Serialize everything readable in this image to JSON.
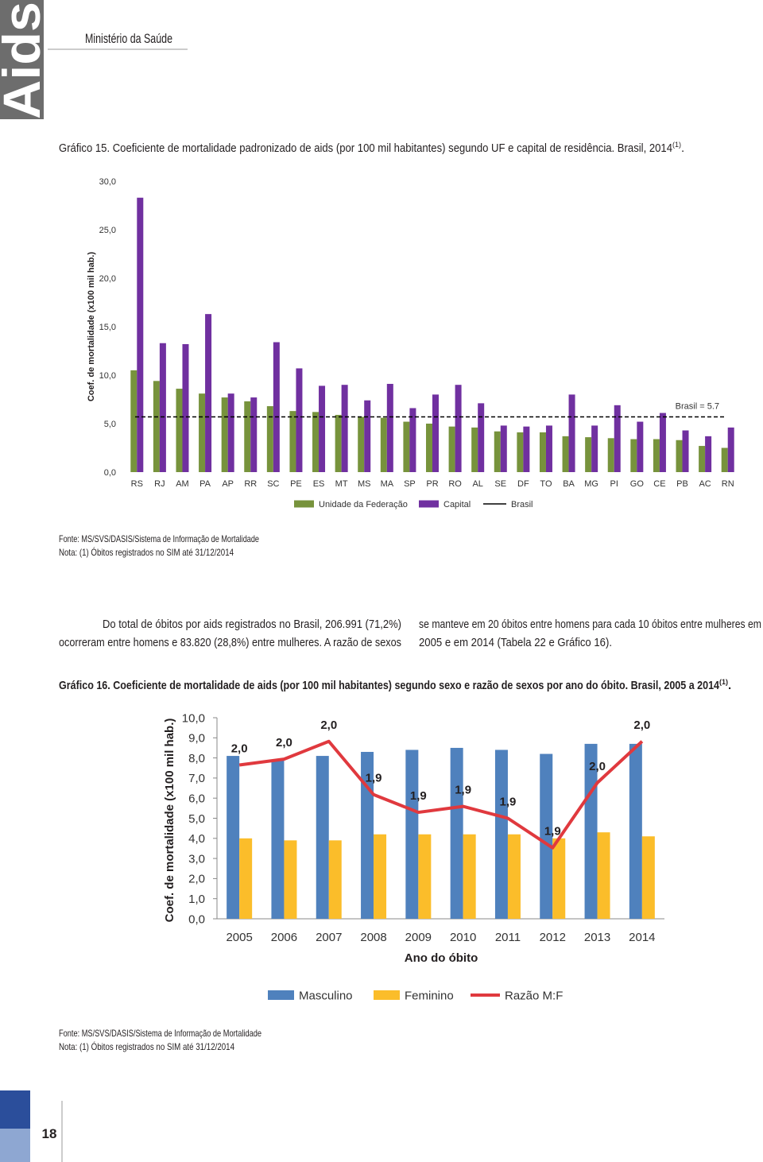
{
  "header": {
    "brand": "Aids",
    "ministry": "Ministério da Saúde"
  },
  "chart_data": [
    {
      "type": "bar",
      "title": "Gráfico 15. Coeficiente de mortalidade padronizado de aids (por 100 mil habitantes) segundo UF e capital de residência. Brasil, 2014",
      "title_sup": "(1)",
      "title_end": ".",
      "ylabel": "Coef. de mortalidade (x100 mil hab.)",
      "categories": [
        "RS",
        "RJ",
        "AM",
        "PA",
        "AP",
        "RR",
        "SC",
        "PE",
        "ES",
        "MT",
        "MS",
        "MA",
        "SP",
        "PR",
        "RO",
        "AL",
        "SE",
        "DF",
        "TO",
        "BA",
        "MG",
        "PI",
        "GO",
        "CE",
        "PB",
        "AC",
        "RN"
      ],
      "series": [
        {
          "name": "Unidade da Federação",
          "color": "#77933c",
          "values": [
            10.5,
            9.4,
            8.6,
            8.1,
            7.7,
            7.3,
            6.8,
            6.3,
            6.2,
            5.9,
            5.7,
            5.6,
            5.2,
            5.0,
            4.7,
            4.6,
            4.2,
            4.1,
            4.1,
            3.7,
            3.6,
            3.5,
            3.4,
            3.4,
            3.3,
            2.7,
            2.5
          ]
        },
        {
          "name": "Capital",
          "color": "#7030a0",
          "values": [
            28.3,
            13.3,
            13.2,
            16.3,
            8.1,
            7.7,
            13.4,
            10.7,
            8.9,
            9.0,
            7.4,
            9.1,
            6.6,
            8.0,
            9.0,
            7.1,
            4.8,
            4.7,
            4.8,
            8.0,
            4.8,
            6.9,
            5.2,
            6.1,
            4.3,
            3.7,
            4.6
          ]
        }
      ],
      "reference": {
        "name": "Brasil",
        "label": "Brasil = 5.7",
        "value": 5.7,
        "color": "#000000"
      },
      "ylim": [
        0,
        30
      ],
      "yticks": [
        {
          "value": 0,
          "label": "0,0"
        },
        {
          "value": 5,
          "label": "5,0"
        },
        {
          "value": 10,
          "label": "10,0"
        },
        {
          "value": 15,
          "label": "15,0"
        },
        {
          "value": 20,
          "label": "20,0"
        },
        {
          "value": 25,
          "label": "25,0"
        },
        {
          "value": 30,
          "label": "30,0"
        }
      ],
      "source": "Fonte: MS/SVS/DASIS/Sistema de Informação de Mortalidade",
      "note": "Nota: (1) Óbitos registrados no SIM até 31/12/2014"
    },
    {
      "type": "bar",
      "title": "Gráfico 16. Coeficiente de mortalidade de aids (por 100 mil habitantes) segundo sexo e razão de sexos por ano do óbito. Brasil, 2005 a 2014",
      "title_sup": "(1)",
      "title_end": ".",
      "xlabel": "Ano do óbito",
      "ylabel": "Coef. de mortalidade (x100 mil hab.)",
      "categories": [
        "2005",
        "2006",
        "2007",
        "2008",
        "2009",
        "2010",
        "2011",
        "2012",
        "2013",
        "2014"
      ],
      "series": [
        {
          "name": "Masculino",
          "color": "#4f81bd",
          "values": [
            8.1,
            7.9,
            8.1,
            8.3,
            8.4,
            8.5,
            8.4,
            8.2,
            8.7,
            8.7
          ]
        },
        {
          "name": "Feminino",
          "color": "#fbbd2a",
          "values": [
            4.0,
            3.9,
            3.9,
            4.2,
            4.2,
            4.2,
            4.2,
            4.0,
            4.3,
            4.1
          ]
        },
        {
          "name": "Razão M:F",
          "type": "line",
          "axis": "y2",
          "color": "#e0393e",
          "values": [
            2.0,
            2.01,
            2.04,
            1.95,
            1.92,
            1.93,
            1.91,
            1.86,
            1.97,
            2.04
          ],
          "value_labels": [
            "2,0",
            "2,0",
            "2,0",
            "1,9",
            "1,9",
            "1,9",
            "1,9",
            "1,9",
            "2,0",
            "2,0"
          ]
        }
      ],
      "ylim": [
        0,
        10
      ],
      "yticks": [
        {
          "value": 0,
          "label": "0,0"
        },
        {
          "value": 1,
          "label": "1,0"
        },
        {
          "value": 2,
          "label": "2,0"
        },
        {
          "value": 3,
          "label": "3,0"
        },
        {
          "value": 4,
          "label": "4,0"
        },
        {
          "value": 5,
          "label": "5,0"
        },
        {
          "value": 6,
          "label": "6,0"
        },
        {
          "value": 7,
          "label": "7,0"
        },
        {
          "value": 8,
          "label": "8,0"
        },
        {
          "value": 9,
          "label": "9,0"
        },
        {
          "value": 10,
          "label": "10,0"
        }
      ],
      "y2lim": [
        1.74,
        2.08
      ],
      "source": "Fonte: MS/SVS/DASIS/Sistema de Informação de Mortalidade",
      "note": "Nota: (1) Óbitos registrados no SIM até 31/12/2014"
    }
  ],
  "body": {
    "col1": [
      "Do total de óbitos por aids registrados no Brasil, 206.991 (71,2%)",
      "ocorreram entre homens e 83.820 (28,8%) entre mulheres. A razão de sexos"
    ],
    "col2": [
      "se manteve em 20 óbitos entre homens para cada 10 óbitos entre mulheres em",
      "2005 e em 2014 (Tabela 22 e Gráfico 16)."
    ]
  },
  "page_number": "18"
}
